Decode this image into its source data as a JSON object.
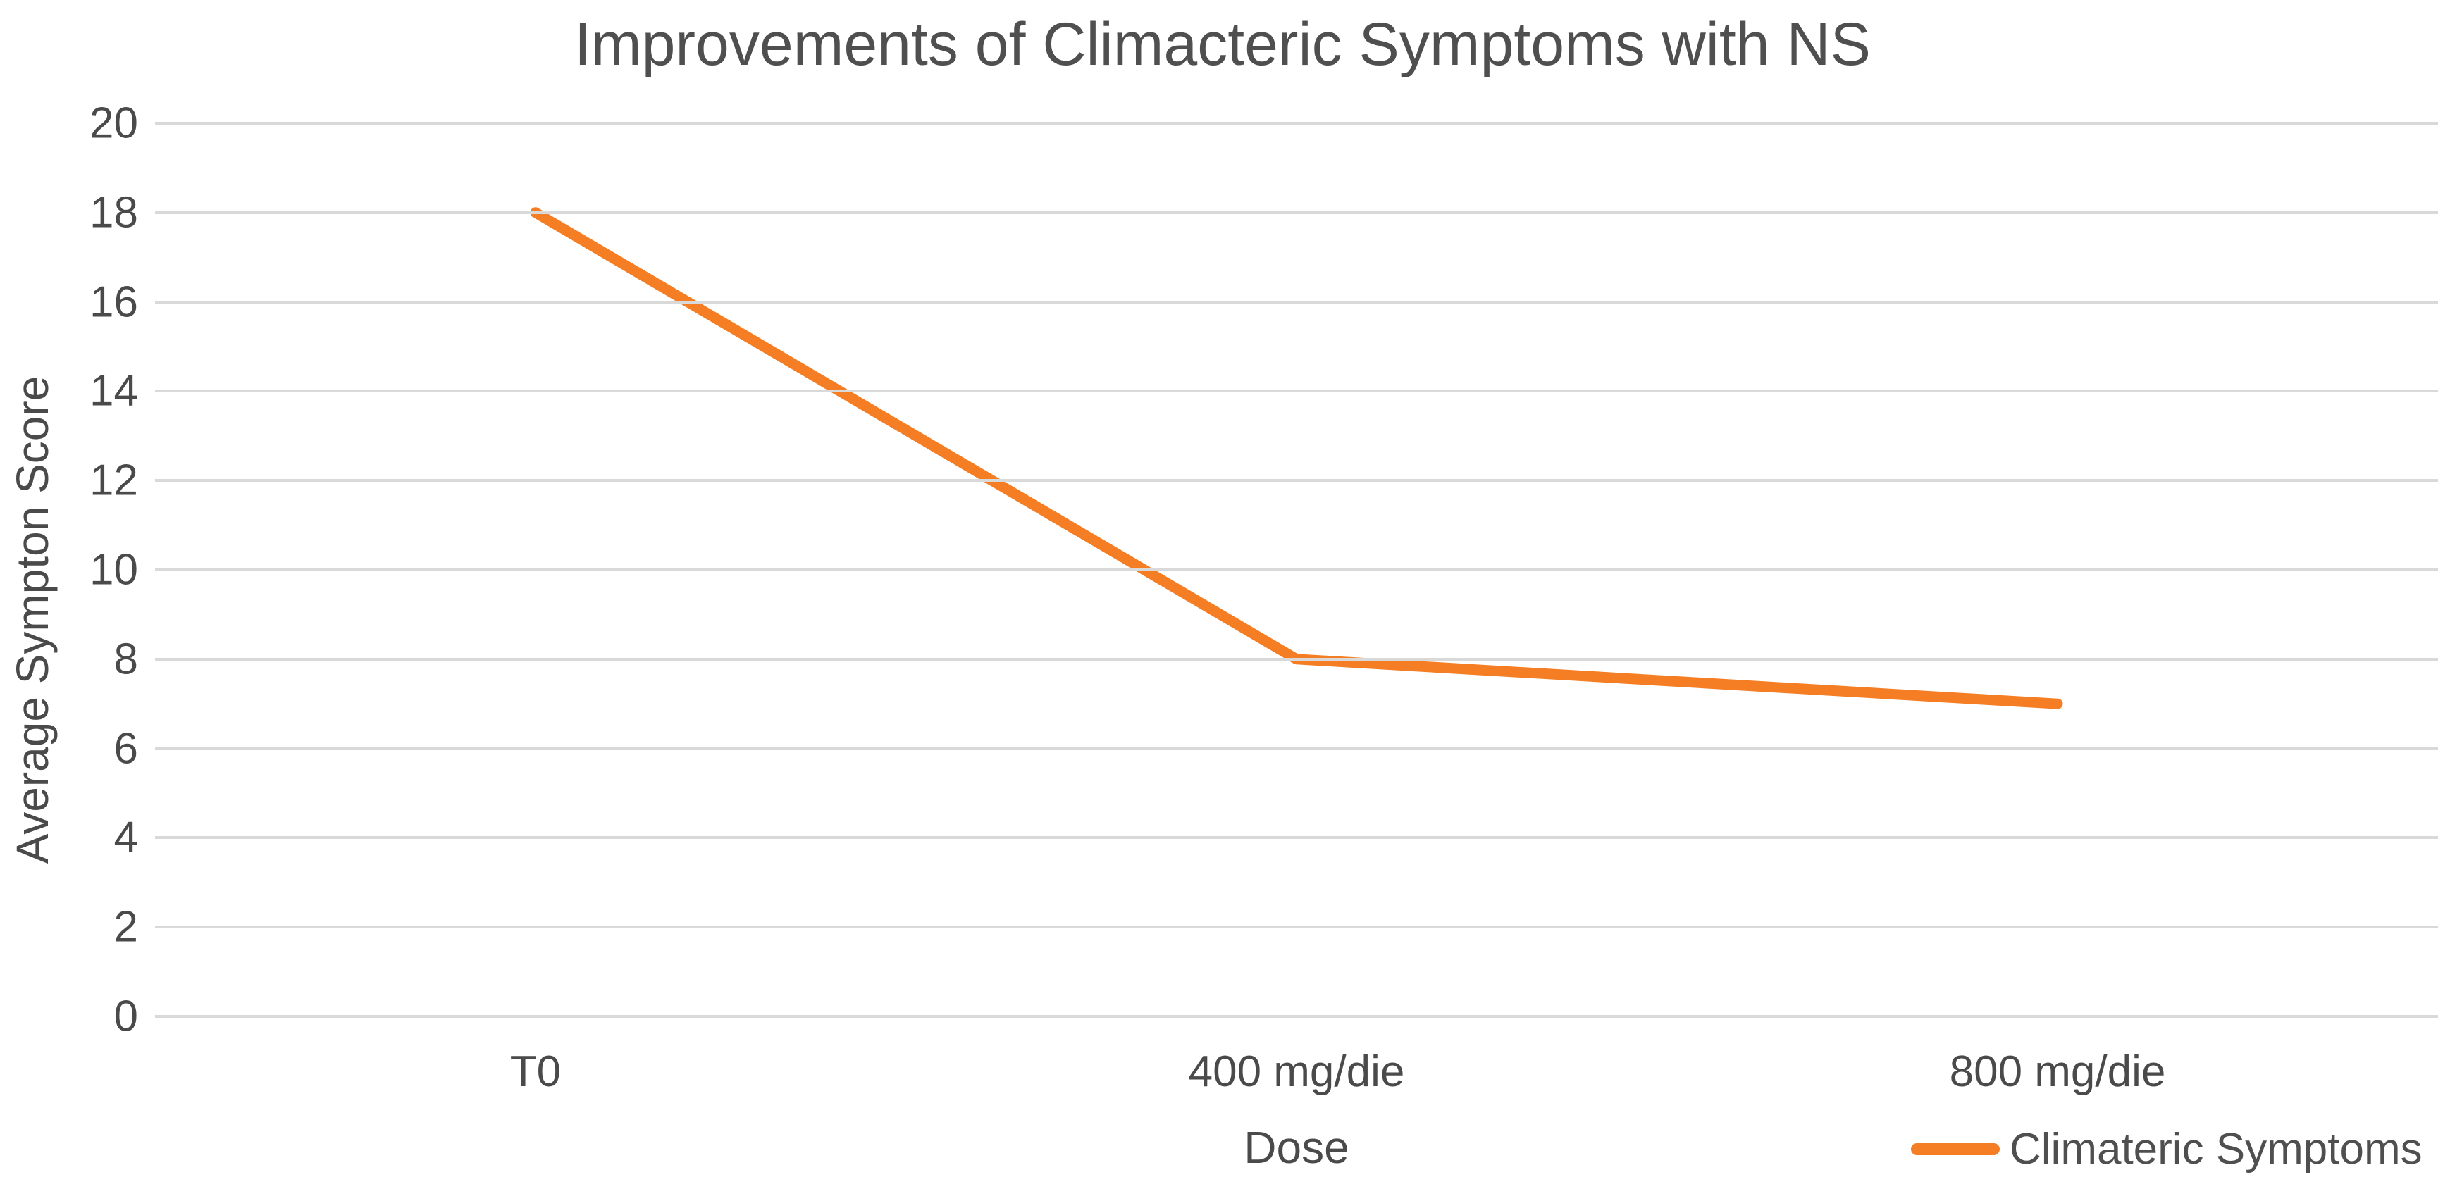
{
  "title": "Improvements of Climacteric Symptoms with NS",
  "chart_data": {
    "type": "line",
    "title": "Improvements of Climacteric Symptoms with NS",
    "categories": [
      "T0",
      "400 mg/die",
      "800 mg/die"
    ],
    "series": [
      {
        "name": "Climateric Symptoms",
        "values": [
          18,
          8,
          7
        ]
      }
    ],
    "xlabel": "Dose",
    "ylabel": "Average Sympton Score",
    "ylim": [
      0,
      20
    ],
    "ytick_step": 2,
    "yticks": [
      20,
      18,
      16,
      14,
      12,
      10,
      8,
      6,
      4,
      2,
      0
    ],
    "grid": "horizontal-only",
    "legend_position": "bottom-right",
    "colors": {
      "line": "#f57e24",
      "gridline": "#d9d9d9",
      "text": "#4f4f4f",
      "background": "#ffffff"
    }
  },
  "legend": {
    "swatch": "orange-line-dash",
    "label": "Climateric Symptoms"
  }
}
